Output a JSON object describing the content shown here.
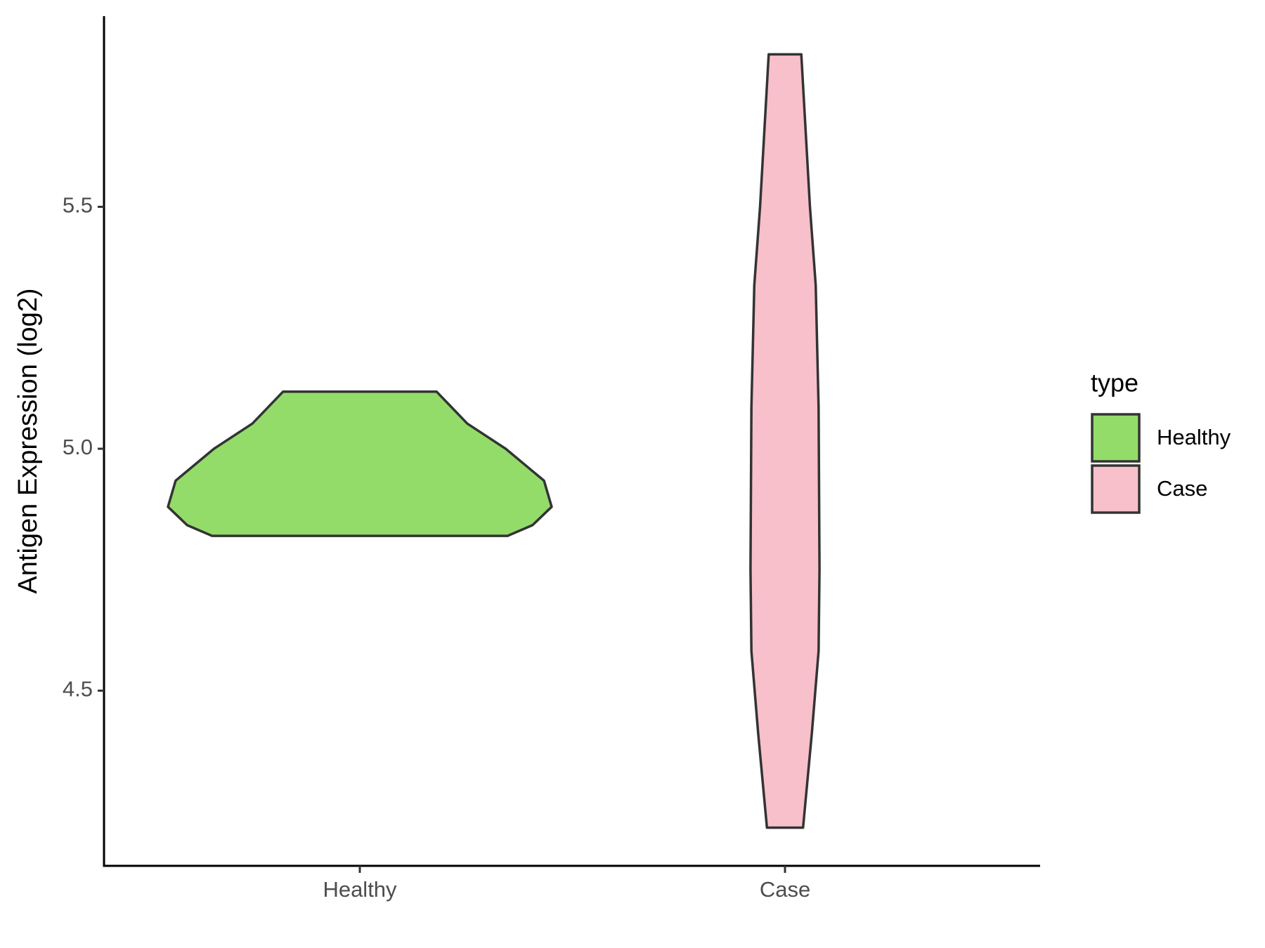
{
  "chart_data": {
    "type": "violin",
    "y_label": "Antigen Expression (log2)",
    "categories": [
      "Healthy",
      "Case"
    ],
    "legend_title": "type",
    "legend": "right",
    "ylim": [
      4.138,
      5.894
    ],
    "yticks": [
      {
        "value": 4.5,
        "label": "4.5"
      },
      {
        "value": 5.0,
        "label": "5.0"
      },
      {
        "value": 5.5,
        "label": "5.5"
      }
    ],
    "grid": false,
    "series": [
      {
        "name": "Healthy",
        "color": "#93dc6a",
        "y": [
          5.118,
          5.052,
          5.0,
          4.934,
          4.88,
          4.842,
          4.82
        ],
        "density": [
          0.4,
          0.56,
          0.76,
          0.96,
          1.0,
          0.9,
          0.77
        ]
      },
      {
        "name": "Case",
        "color": "#f7c0cb",
        "y": [
          5.815,
          5.5,
          5.338,
          5.086,
          4.75,
          4.582,
          4.412,
          4.217
        ],
        "density": [
          0.085,
          0.13,
          0.16,
          0.175,
          0.18,
          0.175,
          0.14,
          0.094
        ]
      }
    ]
  }
}
